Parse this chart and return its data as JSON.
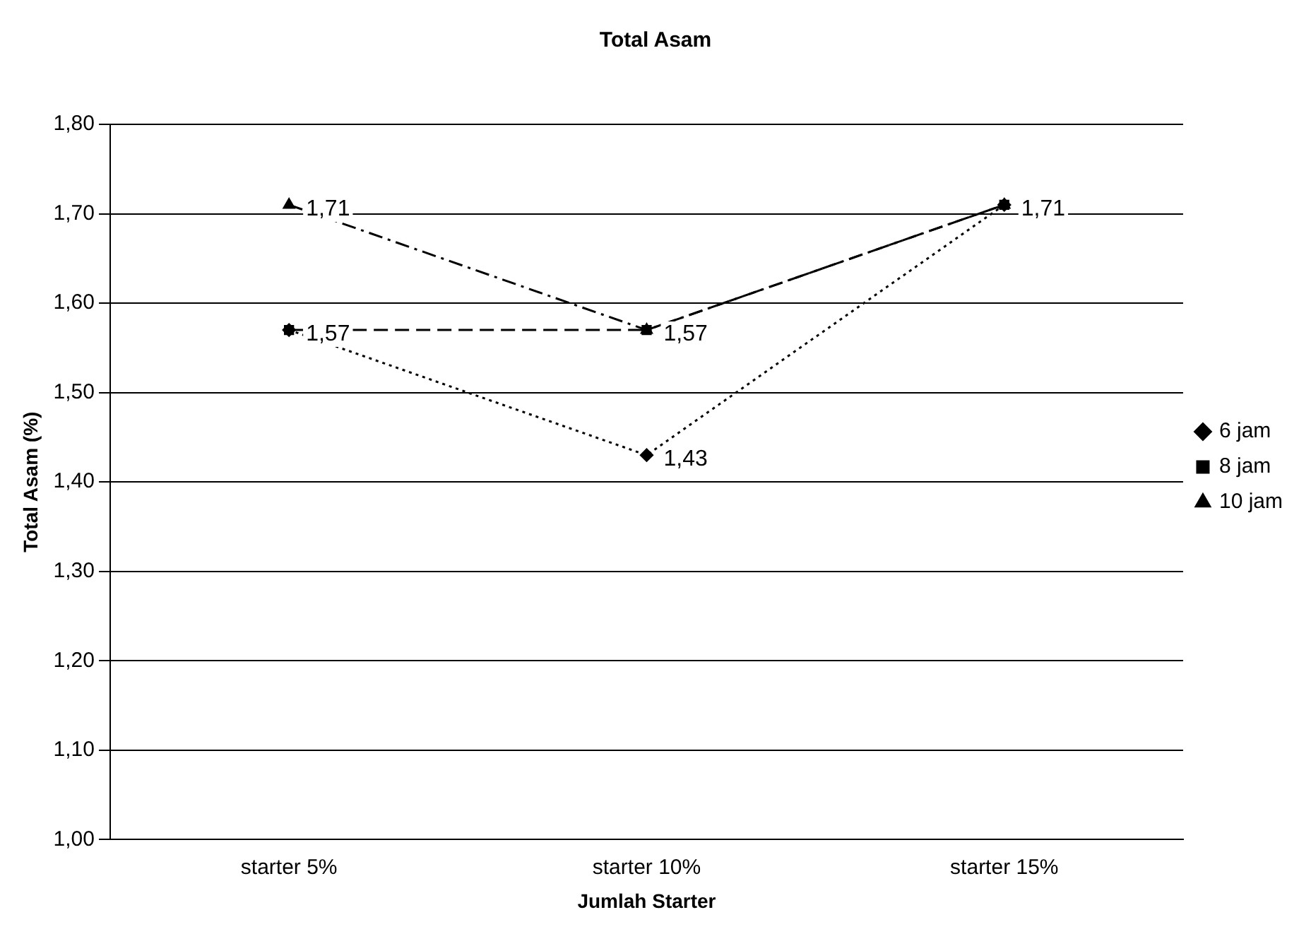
{
  "chart_data": {
    "type": "line",
    "title": "Total Asam",
    "xlabel": "Jumlah Starter",
    "ylabel": "Total Asam (%)",
    "categories": [
      "starter 5%",
      "starter 10%",
      "starter 15%"
    ],
    "series": [
      {
        "name": "6 jam",
        "color": "#000000",
        "values": [
          1.57,
          1.43,
          1.71
        ],
        "value_labels": [
          "1,57",
          "1,43",
          null
        ],
        "marker": "diamond",
        "line_style": "dotted"
      },
      {
        "name": "8 jam",
        "color": "#000000",
        "values": [
          1.57,
          1.57,
          1.71
        ],
        "value_labels": [
          null,
          "1,57",
          "1,71"
        ],
        "marker": "square",
        "line_style": "dashed"
      },
      {
        "name": "10 jam",
        "color": "#000000",
        "values": [
          1.71,
          1.57,
          1.71
        ],
        "value_labels": [
          "1,71",
          null,
          null
        ],
        "marker": "triangle",
        "line_style": "dashdot"
      }
    ],
    "ylim": [
      1.0,
      1.8
    ],
    "yticks": [
      {
        "value": 1.0,
        "label": "1,00"
      },
      {
        "value": 1.1,
        "label": "1,10"
      },
      {
        "value": 1.2,
        "label": "1,20"
      },
      {
        "value": 1.3,
        "label": "1,30"
      },
      {
        "value": 1.4,
        "label": "1,40"
      },
      {
        "value": 1.5,
        "label": "1,50"
      },
      {
        "value": 1.6,
        "label": "1,60"
      },
      {
        "value": 1.7,
        "label": "1,70"
      },
      {
        "value": 1.8,
        "label": "1,80"
      }
    ],
    "grid": "y",
    "legend": "right"
  }
}
